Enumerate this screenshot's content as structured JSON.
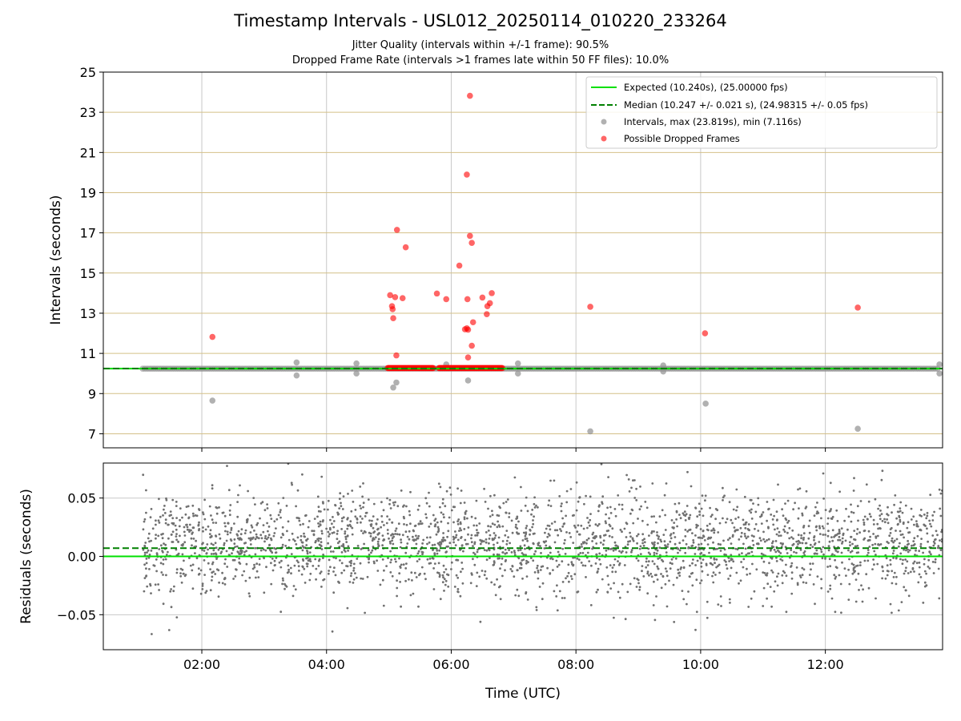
{
  "header": {
    "title": "Timestamp Intervals - USL012_20250114_010220_233264",
    "subtitle1": "Jitter Quality (intervals within +/-1 frame): 90.5%",
    "subtitle2": "Dropped Frame Rate (intervals >1 frames late within 50 FF files): 10.0%"
  },
  "chart_data": [
    {
      "type": "scatter",
      "panel": "intervals",
      "ylabel": "Intervals (seconds)",
      "xlabel": "",
      "xlim_hours": [
        0.42,
        13.88
      ],
      "ylim": [
        6.3,
        25
      ],
      "yticks": [
        7,
        9,
        11,
        13,
        15,
        17,
        19,
        21,
        23,
        25
      ],
      "ytick_labels": [
        "7",
        "9",
        "11",
        "13",
        "15",
        "17",
        "19",
        "21",
        "23",
        "25"
      ],
      "xticks_hours": [
        2,
        4,
        6,
        8,
        10,
        12
      ],
      "grid": "on",
      "legend_placement": "top-right",
      "expected_line": {
        "y": 10.24,
        "color": "#00e000",
        "style": "solid",
        "legend": "Expected (10.240s), (25.00000 fps)"
      },
      "median_line": {
        "y": 10.247,
        "color": "#008000",
        "style": "dashed",
        "legend": "Median (10.247 +/- 0.021 s), (24.98315 +/- 0.05 fps)"
      },
      "series": [
        {
          "name": "Intervals, max (23.819s), min (7.116s)",
          "color": "#909090",
          "baseline_x_range_hours": [
            1.05,
            13.83
          ],
          "baseline_y": 10.24,
          "outliers": [
            [
              2.17,
              8.65
            ],
            [
              3.52,
              9.9
            ],
            [
              3.52,
              10.55
            ],
            [
              4.48,
              10.0
            ],
            [
              4.48,
              10.5
            ],
            [
              5.07,
              9.3
            ],
            [
              5.12,
              9.55
            ],
            [
              5.92,
              10.45
            ],
            [
              6.27,
              9.65
            ],
            [
              7.07,
              10.0
            ],
            [
              7.07,
              10.5
            ],
            [
              8.23,
              7.12
            ],
            [
              9.4,
              10.1
            ],
            [
              9.4,
              10.4
            ],
            [
              10.08,
              8.5
            ],
            [
              12.52,
              7.25
            ],
            [
              13.83,
              10.0
            ],
            [
              13.83,
              10.45
            ]
          ]
        },
        {
          "name": "Possible Dropped Frames",
          "color": "#ff0000",
          "cluster_ranges_hours": [
            [
              4.98,
              5.72
            ],
            [
              5.8,
              6.82
            ]
          ],
          "cluster_y": 10.27,
          "points": [
            [
              2.17,
              11.82
            ],
            [
              5.02,
              13.9
            ],
            [
              5.05,
              13.35
            ],
            [
              5.06,
              13.2
            ],
            [
              5.07,
              12.75
            ],
            [
              5.1,
              13.8
            ],
            [
              5.12,
              10.9
            ],
            [
              5.13,
              17.15
            ],
            [
              5.22,
              13.75
            ],
            [
              5.27,
              16.28
            ],
            [
              5.77,
              13.98
            ],
            [
              5.92,
              13.7
            ],
            [
              6.13,
              15.37
            ],
            [
              6.22,
              12.2
            ],
            [
              6.25,
              19.9
            ],
            [
              6.25,
              12.25
            ],
            [
              6.26,
              13.7
            ],
            [
              6.27,
              12.18
            ],
            [
              6.27,
              10.8
            ],
            [
              6.3,
              16.85
            ],
            [
              6.3,
              23.82
            ],
            [
              6.33,
              16.5
            ],
            [
              6.33,
              11.38
            ],
            [
              6.35,
              12.55
            ],
            [
              6.5,
              13.78
            ],
            [
              6.57,
              12.95
            ],
            [
              6.58,
              13.35
            ],
            [
              6.62,
              13.5
            ],
            [
              6.65,
              14.0
            ],
            [
              8.23,
              13.32
            ],
            [
              10.07,
              12.0
            ],
            [
              12.52,
              13.28
            ]
          ]
        }
      ],
      "legend": [
        "Expected (10.240s), (25.00000 fps)",
        "Median (10.247 +/- 0.021 s), (24.98315 +/- 0.05 fps)",
        "Intervals, max (23.819s), min (7.116s)",
        "Possible Dropped Frames"
      ]
    },
    {
      "type": "scatter",
      "panel": "residuals",
      "ylabel": "Residuals (seconds)",
      "xlabel": "Time (UTC)",
      "xlim_hours": [
        0.42,
        13.88
      ],
      "ylim": [
        -0.08,
        0.08
      ],
      "yticks": [
        -0.05,
        0.0,
        0.05
      ],
      "ytick_labels": [
        "−0.05",
        "0.00",
        "0.05"
      ],
      "xticks_hours": [
        2,
        4,
        6,
        8,
        10,
        12
      ],
      "xtick_labels": [
        "02:00",
        "04:00",
        "06:00",
        "08:00",
        "10:00",
        "12:00"
      ],
      "grid": "on",
      "expected_line": {
        "y": 0.0,
        "color": "#00e000",
        "style": "solid"
      },
      "median_line": {
        "y": 0.007,
        "color": "#008000",
        "style": "dashed"
      },
      "series": [
        {
          "color": "#707070",
          "x_range_hours": [
            1.05,
            13.88
          ],
          "approx_count": 2700,
          "center": 0.01,
          "spread_sd": 0.022,
          "clip": [
            -0.08,
            0.08
          ]
        }
      ]
    }
  ]
}
